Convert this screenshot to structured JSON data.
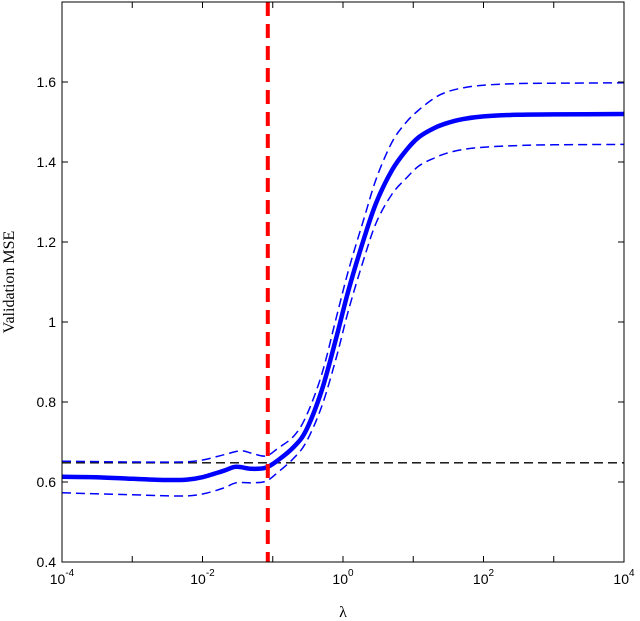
{
  "chart_data": {
    "type": "line",
    "xlabel": "λ",
    "ylabel": "Validation MSE",
    "xscale": "log",
    "xlim": [
      0.0001,
      10000
    ],
    "ylim": [
      0.4,
      1.8
    ],
    "x_ticks": [
      {
        "value": 0.0001,
        "base": "10",
        "exp": "-4"
      },
      {
        "value": 0.01,
        "base": "10",
        "exp": "-2"
      },
      {
        "value": 1,
        "base": "10",
        "exp": "0"
      },
      {
        "value": 100,
        "base": "10",
        "exp": "2"
      },
      {
        "value": 10000,
        "base": "10",
        "exp": "4"
      }
    ],
    "y_ticks": [
      {
        "value": 0.4,
        "label": "0.4"
      },
      {
        "value": 0.6,
        "label": "0.6"
      },
      {
        "value": 0.8,
        "label": "0.8"
      },
      {
        "value": 1.0,
        "label": "1"
      },
      {
        "value": 1.2,
        "label": "1.2"
      },
      {
        "value": 1.4,
        "label": "1.4"
      },
      {
        "value": 1.6,
        "label": "1.6"
      }
    ],
    "grid": false,
    "series": [
      {
        "role": "mean",
        "color": "#0000ff",
        "style": "solid",
        "x": [
          0.0001,
          0.0003,
          0.001,
          0.003,
          0.006,
          0.01,
          0.02,
          0.03,
          0.05,
          0.08,
          0.12,
          0.2,
          0.3,
          0.5,
          0.8,
          1.2,
          2,
          3,
          5,
          8,
          12,
          20,
          30,
          50,
          100,
          300,
          1000,
          10000
        ],
        "y": [
          0.613,
          0.612,
          0.608,
          0.605,
          0.606,
          0.612,
          0.628,
          0.638,
          0.633,
          0.636,
          0.655,
          0.688,
          0.73,
          0.83,
          0.96,
          1.08,
          1.21,
          1.3,
          1.38,
          1.43,
          1.462,
          1.485,
          1.497,
          1.507,
          1.514,
          1.518,
          1.519,
          1.52
        ]
      },
      {
        "role": "upper-bound",
        "color": "#0000ff",
        "style": "dashed",
        "x": [
          0.0001,
          0.001,
          0.005,
          0.01,
          0.02,
          0.035,
          0.05,
          0.08,
          0.12,
          0.2,
          0.3,
          0.5,
          0.8,
          1.2,
          2,
          3,
          5,
          8,
          12,
          20,
          30,
          50,
          100,
          300,
          1000,
          10000
        ],
        "y": [
          0.652,
          0.65,
          0.65,
          0.655,
          0.668,
          0.678,
          0.672,
          0.665,
          0.685,
          0.715,
          0.765,
          0.87,
          1.01,
          1.13,
          1.26,
          1.36,
          1.45,
          1.5,
          1.53,
          1.56,
          1.575,
          1.585,
          1.592,
          1.596,
          1.597,
          1.598
        ]
      },
      {
        "role": "lower-bound",
        "color": "#0000ff",
        "style": "dashed",
        "x": [
          0.0001,
          0.001,
          0.005,
          0.01,
          0.02,
          0.03,
          0.05,
          0.08,
          0.12,
          0.2,
          0.3,
          0.5,
          0.8,
          1.2,
          2,
          3,
          5,
          8,
          12,
          20,
          30,
          50,
          100,
          300,
          1000,
          10000
        ],
        "y": [
          0.573,
          0.568,
          0.565,
          0.57,
          0.585,
          0.598,
          0.598,
          0.602,
          0.625,
          0.66,
          0.7,
          0.79,
          0.91,
          1.03,
          1.16,
          1.25,
          1.32,
          1.36,
          1.39,
          1.41,
          1.422,
          1.431,
          1.437,
          1.441,
          1.443,
          1.444
        ]
      }
    ],
    "reference_lines": [
      {
        "orientation": "vertical",
        "x": 0.085,
        "color": "#ff0000",
        "style": "dashed"
      },
      {
        "orientation": "horizontal",
        "y": 0.648,
        "color": "#000000",
        "style": "dashed"
      }
    ]
  }
}
